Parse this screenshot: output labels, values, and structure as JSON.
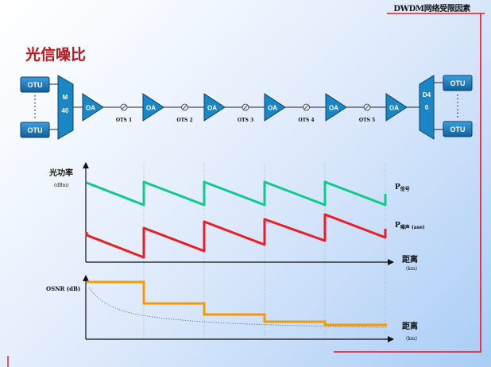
{
  "header_title": "DWDM网络受限因素",
  "slide_title": "光信噪比",
  "colors": {
    "frame_red": "#e8141c",
    "title_red": "#c0141a",
    "otu_blue": "#1f7fc2",
    "oa_blue": "#1a87c4",
    "signal_green": "#12c98c",
    "noise_red": "#ec1c24",
    "osnr_orange": "#f59a00"
  },
  "diagram": {
    "otu_label": "OTU",
    "mux_label": "M\n40",
    "demux_label": "D4\n0",
    "amp_label": "OA",
    "spans": [
      "OTS 1",
      "OTS 2",
      "OTS 3",
      "OTS 4",
      "OTS 5"
    ]
  },
  "chart_data": [
    {
      "type": "line",
      "ylabel": "光功率",
      "yunit": "(dBm)",
      "xlabel": "距离",
      "xunit": "(km)",
      "series": [
        {
          "name": "P信号",
          "name_main": "P",
          "name_sub": "信号",
          "shape": "sawtooth",
          "period_count": 5
        },
        {
          "name": "P噪声 (ase)",
          "name_main": "P",
          "name_sub": "噪声 (ase)",
          "shape": "rising-sawtooth",
          "period_count": 5
        }
      ],
      "grid": "vertical dotted lines at amplifier positions"
    },
    {
      "type": "line",
      "ylabel": "OSNR (dB)",
      "xlabel": "距离",
      "xunit": "(km)",
      "series": [
        {
          "shape": "step-down",
          "segments": 5
        },
        {
          "style": "dotted",
          "shape": "decaying-curve"
        }
      ]
    }
  ]
}
